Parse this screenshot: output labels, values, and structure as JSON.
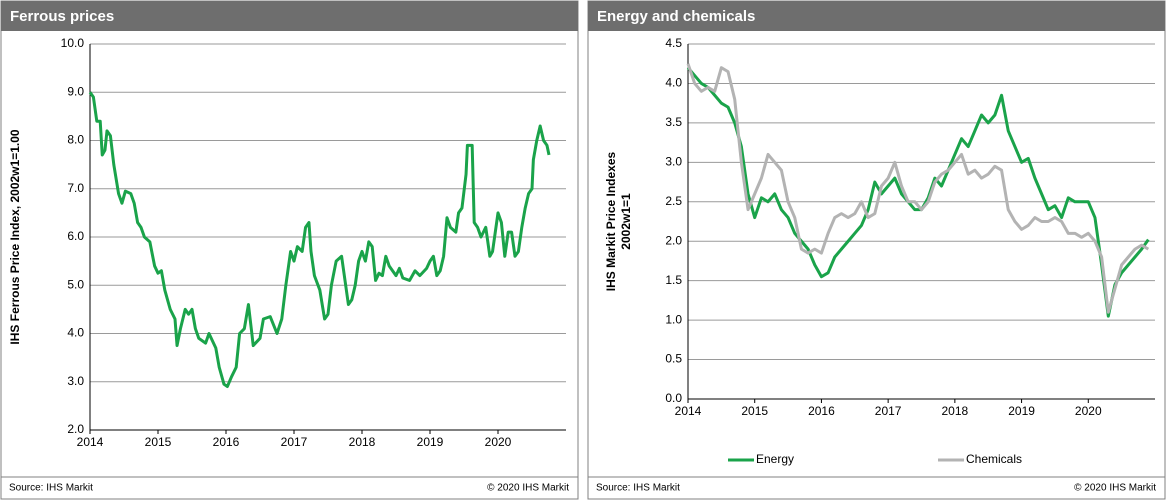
{
  "chart_data": [
    {
      "type": "line",
      "title": "Ferrous prices",
      "ylabel": [
        "IHS Ferrous Price Index, 2002w1=1.00"
      ],
      "source": "Source:  IHS Markit",
      "copyright": "© 2020  IHS Markit",
      "color": "#1aa34a",
      "grid": true,
      "xlim": [
        2014,
        2021
      ],
      "xticks": [
        2014,
        2015,
        2016,
        2017,
        2018,
        2019,
        2020
      ],
      "ylim": [
        2,
        10
      ],
      "yticks": [
        {
          "value": 2,
          "label": "2.0"
        },
        {
          "value": 3,
          "label": "3.0"
        },
        {
          "value": 4,
          "label": "4.0"
        },
        {
          "value": 5,
          "label": "5.0"
        },
        {
          "value": 6,
          "label": "6.0"
        },
        {
          "value": 7,
          "label": "7.0"
        },
        {
          "value": 8,
          "label": "8.0"
        },
        {
          "value": 9,
          "label": "9.0"
        },
        {
          "value": 10,
          "label": "10.0"
        }
      ],
      "x": [
        2014.0,
        2014.05,
        2014.1,
        2014.15,
        2014.18,
        2014.22,
        2014.25,
        2014.3,
        2014.35,
        2014.42,
        2014.47,
        2014.52,
        2014.6,
        2014.65,
        2014.7,
        2014.75,
        2014.8,
        2014.88,
        2014.95,
        2015.0,
        2015.05,
        2015.1,
        2015.18,
        2015.25,
        2015.28,
        2015.33,
        2015.4,
        2015.45,
        2015.5,
        2015.55,
        2015.6,
        2015.7,
        2015.75,
        2015.8,
        2015.85,
        2015.9,
        2015.97,
        2016.02,
        2016.08,
        2016.15,
        2016.2,
        2016.27,
        2016.33,
        2016.38,
        2016.4,
        2016.5,
        2016.55,
        2016.65,
        2016.75,
        2016.82,
        2016.88,
        2016.95,
        2017.0,
        2017.05,
        2017.12,
        2017.17,
        2017.22,
        2017.25,
        2017.3,
        2017.38,
        2017.45,
        2017.5,
        2017.55,
        2017.62,
        2017.7,
        2017.75,
        2017.8,
        2017.85,
        2017.9,
        2017.95,
        2018.0,
        2018.05,
        2018.1,
        2018.15,
        2018.2,
        2018.25,
        2018.3,
        2018.35,
        2018.4,
        2018.5,
        2018.55,
        2018.6,
        2018.7,
        2018.78,
        2018.85,
        2018.95,
        2019.0,
        2019.05,
        2019.1,
        2019.15,
        2019.2,
        2019.25,
        2019.3,
        2019.38,
        2019.42,
        2019.47,
        2019.53,
        2019.55,
        2019.62,
        2019.65,
        2019.7,
        2019.75,
        2019.82,
        2019.88,
        2019.92,
        2020.0,
        2020.05,
        2020.1,
        2020.15,
        2020.2,
        2020.25,
        2020.3,
        2020.35,
        2020.4,
        2020.45,
        2020.5,
        2020.52,
        2020.57,
        2020.62,
        2020.67,
        2020.72,
        2020.75
      ],
      "values": [
        9.0,
        8.9,
        8.4,
        8.4,
        7.7,
        7.8,
        8.2,
        8.1,
        7.5,
        6.9,
        6.7,
        6.95,
        6.9,
        6.7,
        6.3,
        6.2,
        6.0,
        5.9,
        5.4,
        5.25,
        5.3,
        4.9,
        4.5,
        4.3,
        3.75,
        4.1,
        4.5,
        4.4,
        4.5,
        4.1,
        3.9,
        3.8,
        4.0,
        3.85,
        3.7,
        3.3,
        2.95,
        2.9,
        3.1,
        3.3,
        4.0,
        4.1,
        4.6,
        4.0,
        3.75,
        3.9,
        4.3,
        4.35,
        4.0,
        4.3,
        5.0,
        5.7,
        5.5,
        5.8,
        5.7,
        6.2,
        6.3,
        5.7,
        5.2,
        4.9,
        4.3,
        4.4,
        5.0,
        5.5,
        5.6,
        5.1,
        4.6,
        4.7,
        5.0,
        5.5,
        5.7,
        5.5,
        5.9,
        5.8,
        5.1,
        5.25,
        5.2,
        5.6,
        5.4,
        5.2,
        5.35,
        5.15,
        5.1,
        5.3,
        5.2,
        5.35,
        5.5,
        5.6,
        5.2,
        5.3,
        5.6,
        6.4,
        6.2,
        6.1,
        6.5,
        6.6,
        7.3,
        7.9,
        7.9,
        6.3,
        6.2,
        6.0,
        6.2,
        5.6,
        5.7,
        6.5,
        6.3,
        5.6,
        6.1,
        6.1,
        5.6,
        5.7,
        6.2,
        6.6,
        6.9,
        7.0,
        7.6,
        8.0,
        8.3,
        8.0,
        7.9,
        7.7
      ]
    },
    {
      "type": "line",
      "title": "Energy and chemicals",
      "ylabel": [
        "IHS Markit Price Indexes",
        "2002w1=1"
      ],
      "source": "Source:  IHS Markit",
      "copyright": "© 2020  IHS Markit",
      "grid": true,
      "legend": "bottom",
      "xlim": [
        2014,
        2021
      ],
      "xticks": [
        2014,
        2015,
        2016,
        2017,
        2018,
        2019,
        2020
      ],
      "ylim": [
        0,
        4.5
      ],
      "yticks": [
        {
          "value": 0,
          "label": "0.0"
        },
        0.5,
        {
          "value": 1,
          "label": "1.0"
        },
        1.5,
        {
          "value": 2,
          "label": "2.0"
        },
        2.5,
        {
          "value": 3,
          "label": "3.0"
        },
        3.5,
        {
          "value": 4,
          "label": "4.0"
        },
        4.5
      ],
      "x": [
        2014.0,
        2014.1,
        2014.2,
        2014.3,
        2014.4,
        2014.5,
        2014.6,
        2014.7,
        2014.8,
        2014.9,
        2015.0,
        2015.1,
        2015.2,
        2015.3,
        2015.4,
        2015.5,
        2015.6,
        2015.7,
        2015.8,
        2015.9,
        2016.0,
        2016.1,
        2016.2,
        2016.3,
        2016.4,
        2016.5,
        2016.6,
        2016.7,
        2016.8,
        2016.9,
        2017.0,
        2017.1,
        2017.2,
        2017.3,
        2017.4,
        2017.5,
        2017.6,
        2017.7,
        2017.8,
        2017.9,
        2018.0,
        2018.1,
        2018.2,
        2018.3,
        2018.4,
        2018.5,
        2018.6,
        2018.7,
        2018.8,
        2018.9,
        2019.0,
        2019.1,
        2019.2,
        2019.3,
        2019.4,
        2019.5,
        2019.6,
        2019.7,
        2019.8,
        2019.9,
        2020.0,
        2020.1,
        2020.2,
        2020.3,
        2020.4,
        2020.5,
        2020.6,
        2020.7,
        2020.8,
        2020.9
      ],
      "series": [
        {
          "name": "Energy",
          "color": "#1aa34a",
          "values": [
            4.2,
            4.1,
            4.0,
            3.95,
            3.85,
            3.75,
            3.7,
            3.5,
            3.2,
            2.6,
            2.3,
            2.55,
            2.5,
            2.6,
            2.4,
            2.3,
            2.1,
            2.0,
            1.9,
            1.7,
            1.55,
            1.6,
            1.8,
            1.9,
            2.0,
            2.1,
            2.2,
            2.4,
            2.75,
            2.6,
            2.7,
            2.8,
            2.6,
            2.5,
            2.4,
            2.4,
            2.55,
            2.8,
            2.7,
            2.9,
            3.1,
            3.3,
            3.2,
            3.4,
            3.6,
            3.5,
            3.6,
            3.85,
            3.4,
            3.2,
            3.0,
            3.05,
            2.8,
            2.6,
            2.4,
            2.45,
            2.3,
            2.55,
            2.5,
            2.5,
            2.5,
            2.3,
            1.7,
            1.05,
            1.45,
            1.6,
            1.7,
            1.8,
            1.9,
            2.02
          ]
        },
        {
          "name": "Chemicals",
          "color": "#b3b3b3",
          "values": [
            4.25,
            4.0,
            3.9,
            3.95,
            3.9,
            4.2,
            4.15,
            3.8,
            3.0,
            2.4,
            2.6,
            2.8,
            3.1,
            3.0,
            2.9,
            2.5,
            2.3,
            1.9,
            1.85,
            1.9,
            1.85,
            2.1,
            2.3,
            2.35,
            2.3,
            2.35,
            2.5,
            2.3,
            2.35,
            2.7,
            2.8,
            3.0,
            2.7,
            2.5,
            2.5,
            2.4,
            2.5,
            2.75,
            2.85,
            2.9,
            3.0,
            3.1,
            2.85,
            2.9,
            2.8,
            2.85,
            2.95,
            2.9,
            2.4,
            2.25,
            2.15,
            2.2,
            2.3,
            2.25,
            2.25,
            2.3,
            2.25,
            2.1,
            2.1,
            2.05,
            2.1,
            2.0,
            1.8,
            1.1,
            1.4,
            1.7,
            1.8,
            1.9,
            1.95,
            1.9
          ]
        }
      ]
    }
  ]
}
